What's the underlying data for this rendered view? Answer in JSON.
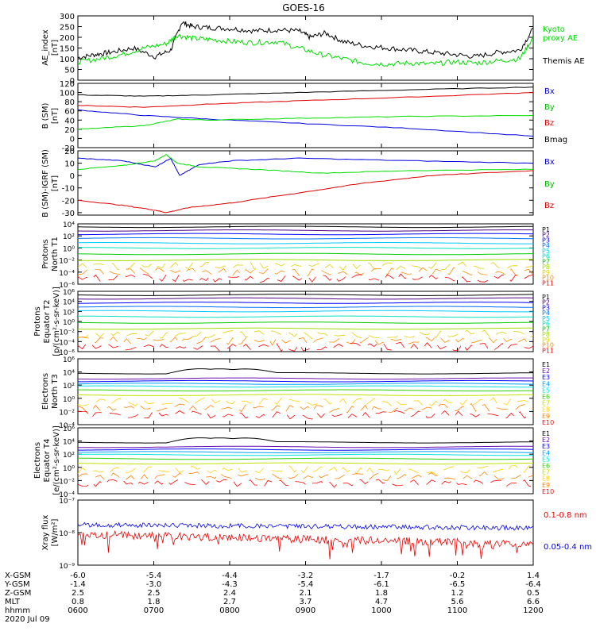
{
  "title": "GOES-16",
  "date": "2020 Jul 09",
  "colors": {
    "black": "#000000",
    "blue": "#0000dd",
    "green": "#00dd00",
    "red": "#dd0000",
    "xray_blue": "#0000ee",
    "xray_red": "#ee0000"
  },
  "p_colors": [
    "#000000",
    "#4b0082",
    "#0000ff",
    "#0070ff",
    "#00c8ff",
    "#00e0c0",
    "#00cc00",
    "#a0dd00",
    "#e0d000",
    "#ff8c00",
    "#ff0000"
  ],
  "e_colors": [
    "#000000",
    "#6a0dad",
    "#0000ff",
    "#00a0ff",
    "#00e0e0",
    "#30d000",
    "#c0e000",
    "#ffd000",
    "#ff8000",
    "#ff0000"
  ],
  "chart_data": [
    {
      "type": "line",
      "id": "ae",
      "ylabel": "AE index [nT]",
      "ylim": [
        0,
        300
      ],
      "yticks": [
        "0",
        "50",
        "100",
        "150",
        "200",
        "250",
        "300"
      ],
      "legend": [
        "Kyoto proxy AE",
        "Themis AE"
      ],
      "series": [
        {
          "name": "Themis AE",
          "color": "black",
          "points": [
            [
              0,
              105
            ],
            [
              8,
              120
            ],
            [
              15,
              130
            ],
            [
              25,
              150
            ],
            [
              35,
              110
            ],
            [
              42,
              140
            ],
            [
              47,
              270
            ],
            [
              52,
              250
            ],
            [
              60,
              245
            ],
            [
              70,
              240
            ],
            [
              80,
              230
            ],
            [
              90,
              235
            ],
            [
              100,
              230
            ],
            [
              105,
              200
            ],
            [
              112,
              220
            ],
            [
              120,
              180
            ],
            [
              130,
              160
            ],
            [
              140,
              150
            ],
            [
              150,
              140
            ],
            [
              160,
              130
            ],
            [
              170,
              120
            ],
            [
              180,
              110
            ],
            [
              190,
              130
            ],
            [
              200,
              140
            ],
            [
              206,
              240
            ]
          ]
        },
        {
          "name": "Kyoto proxy AE",
          "color": "green",
          "points": [
            [
              0,
              85
            ],
            [
              10,
              100
            ],
            [
              20,
              120
            ],
            [
              30,
              150
            ],
            [
              40,
              170
            ],
            [
              45,
              210
            ],
            [
              52,
              195
            ],
            [
              60,
              190
            ],
            [
              70,
              180
            ],
            [
              80,
              175
            ],
            [
              90,
              180
            ],
            [
              100,
              150
            ],
            [
              110,
              120
            ],
            [
              120,
              100
            ],
            [
              130,
              80
            ],
            [
              140,
              75
            ],
            [
              150,
              80
            ],
            [
              160,
              75
            ],
            [
              170,
              85
            ],
            [
              180,
              80
            ],
            [
              190,
              90
            ],
            [
              200,
              100
            ],
            [
              206,
              200
            ]
          ]
        }
      ]
    },
    {
      "type": "line",
      "id": "bsm",
      "ylabel": "B (SM) [nT]",
      "ylim": [
        -20,
        120
      ],
      "yticks": [
        "-20",
        "0",
        "20",
        "40",
        "60",
        "80",
        "100",
        "120"
      ],
      "legend": [
        "Bx",
        "By",
        "Bz",
        "Bmag"
      ],
      "series": [
        {
          "name": "Bmag",
          "color": "black",
          "points": [
            [
              0,
              95
            ],
            [
              30,
              92
            ],
            [
              60,
              95
            ],
            [
              100,
              100
            ],
            [
              150,
              106
            ],
            [
              206,
              112
            ]
          ]
        },
        {
          "name": "Bz",
          "color": "red",
          "points": [
            [
              0,
              72
            ],
            [
              30,
              68
            ],
            [
              60,
              75
            ],
            [
              100,
              82
            ],
            [
              150,
              90
            ],
            [
              206,
              100
            ]
          ]
        },
        {
          "name": "Bx",
          "color": "blue",
          "points": [
            [
              0,
              62
            ],
            [
              30,
              50
            ],
            [
              60,
              42
            ],
            [
              100,
              33
            ],
            [
              150,
              22
            ],
            [
              206,
              5
            ]
          ]
        },
        {
          "name": "By",
          "color": "green",
          "points": [
            [
              0,
              20
            ],
            [
              30,
              28
            ],
            [
              45,
              42
            ],
            [
              60,
              40
            ],
            [
              100,
              44
            ],
            [
              150,
              48
            ],
            [
              206,
              50
            ]
          ]
        }
      ]
    },
    {
      "type": "line",
      "id": "bdiff",
      "ylabel": "B (SM)-IGRF (SM) [nT]",
      "ylim": [
        -32,
        20
      ],
      "yticks": [
        "-30",
        "-20",
        "-10",
        "0",
        "10",
        "20"
      ],
      "legend": [
        "Bx",
        "By",
        "Bz"
      ],
      "series": [
        {
          "name": "Bx",
          "color": "blue",
          "points": [
            [
              0,
              14
            ],
            [
              20,
              12
            ],
            [
              35,
              7
            ],
            [
              42,
              14
            ],
            [
              46,
              0
            ],
            [
              55,
              9
            ],
            [
              70,
              12
            ],
            [
              100,
              14
            ],
            [
              150,
              12
            ],
            [
              206,
              10
            ]
          ]
        },
        {
          "name": "By",
          "color": "green",
          "points": [
            [
              0,
              5
            ],
            [
              20,
              8
            ],
            [
              35,
              12
            ],
            [
              40,
              17
            ],
            [
              45,
              10
            ],
            [
              55,
              7
            ],
            [
              80,
              5
            ],
            [
              110,
              2
            ],
            [
              150,
              4
            ],
            [
              206,
              5
            ]
          ]
        },
        {
          "name": "Bz",
          "color": "red",
          "points": [
            [
              0,
              -20
            ],
            [
              20,
              -24
            ],
            [
              35,
              -28
            ],
            [
              40,
              -30
            ],
            [
              50,
              -26
            ],
            [
              70,
              -22
            ],
            [
              100,
              -14
            ],
            [
              130,
              -6
            ],
            [
              160,
              0
            ],
            [
              206,
              4
            ]
          ]
        }
      ]
    },
    {
      "type": "line",
      "id": "protons_t1",
      "ylabel": "Protons North T1",
      "yticks": [
        "10⁻⁶",
        "10⁻⁴",
        "10⁻²",
        "10⁰",
        "10²",
        "10⁴"
      ],
      "legend": [
        "P1",
        "P2",
        "P3",
        "P4",
        "P5",
        "P6",
        "P7",
        "P8",
        "P9",
        "P10",
        "P11"
      ]
    },
    {
      "type": "line",
      "id": "protons_t2",
      "ylabel": "Protons Equator T2 [p/(cm²-s-sr-keV)]",
      "yticks": [
        "10⁻⁶",
        "10⁻⁴",
        "10⁻²",
        "10⁰",
        "10²",
        "10⁴",
        "10⁶"
      ],
      "legend": [
        "P1",
        "P2",
        "P3",
        "P4",
        "P5",
        "P6",
        "P7",
        "P8",
        "P9",
        "P10",
        "P11"
      ]
    },
    {
      "type": "line",
      "id": "electrons_t3",
      "ylabel": "Electrons North T3",
      "yticks": [
        "10⁻⁴",
        "10⁻²",
        "10⁰",
        "10²",
        "10⁴",
        "10⁶"
      ],
      "legend": [
        "E1",
        "E2",
        "E3",
        "E4",
        "E5",
        "E6",
        "E7",
        "E8",
        "E9",
        "E10"
      ]
    },
    {
      "type": "line",
      "id": "electrons_t4",
      "ylabel": "Electrons Equator T4 [e/(cm²-s-sr-keV)]",
      "yticks": [
        "10⁻⁴",
        "10⁻²",
        "10⁰",
        "10²",
        "10⁴",
        "10⁶"
      ],
      "legend": [
        "E1",
        "E2",
        "E3",
        "E4",
        "E5",
        "E6",
        "E7",
        "E8",
        "E9",
        "E10"
      ]
    },
    {
      "type": "line",
      "id": "xray",
      "ylabel": "Xray flux [W/m²]",
      "yticks": [
        "10⁻⁹",
        "10⁻⁸",
        "10⁻⁷"
      ],
      "legend": [
        "0.1-0.8 nm",
        "0.05-0.4 nm"
      ]
    }
  ],
  "xaxis": {
    "tick_times": [
      "0600",
      "0700",
      "0800",
      "0900",
      "1000",
      "1100",
      "1200"
    ],
    "rows": [
      {
        "label": "X-GSM",
        "values": [
          "-6.0",
          "-5.4",
          "-4.4",
          "-3.2",
          "-1.7",
          "-0.2",
          "1.4"
        ]
      },
      {
        "label": "Y-GSM",
        "values": [
          "-1.4",
          "-3.0",
          "-4.3",
          "-5.4",
          "-6.1",
          "-6.5",
          "-6.4"
        ]
      },
      {
        "label": "Z-GSM",
        "values": [
          "2.5",
          "2.5",
          "2.4",
          "2.1",
          "1.8",
          "1.2",
          "0.5"
        ]
      },
      {
        "label": "MLT",
        "values": [
          "0.8",
          "1.8",
          "2.7",
          "3.7",
          "4.7",
          "5.6",
          "6.6"
        ]
      },
      {
        "label": "hhmm",
        "values": [
          "0600",
          "0700",
          "0800",
          "0900",
          "1000",
          "1100",
          "1200"
        ]
      }
    ]
  }
}
